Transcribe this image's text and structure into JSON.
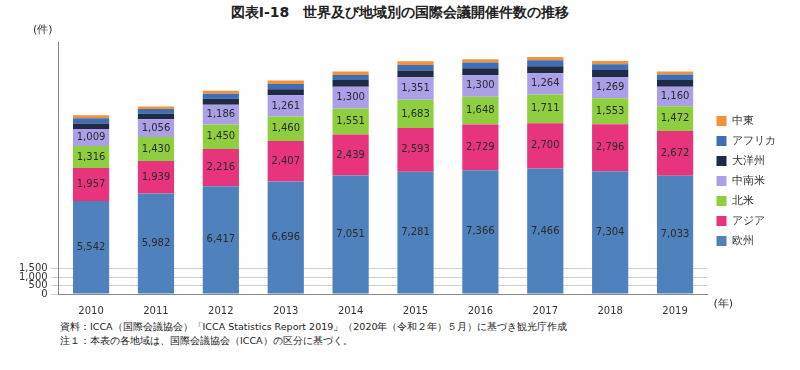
{
  "chart_data": {
    "type": "bar",
    "title": "図表Ⅰ-18　世界及び地域別の国際会議開催件数の推移",
    "ylabel": "(件)",
    "xlabel": "(年)",
    "notes": [
      "資料：ICCA（国際会議協会）「ICCA Statistics Report 2019」（2020年（令和２年）５月）に基づき観光庁作成",
      "注１：本表の各地域は、国際会議協会（ICCA）の区分に基づく。"
    ],
    "categories": [
      "2010",
      "2011",
      "2012",
      "2013",
      "2014",
      "2015",
      "2016",
      "2017",
      "2018",
      "2019"
    ],
    "stacked": true,
    "grid": true,
    "legend": "right",
    "ylim": [
      0,
      15000
    ],
    "yticks": [
      0,
      500,
      {
        "value": 1000,
        "label": "1,000"
      },
      {
        "value": 1500,
        "label": "1,500"
      }
    ],
    "series": [
      {
        "name": "欧州",
        "color": "#4f81bd",
        "data_labels": true,
        "values": [
          5542,
          5982,
          6417,
          6696,
          7051,
          7281,
          7366,
          7466,
          7304,
          7033
        ],
        "value_labels": [
          "5,542",
          "5,982",
          "6,417",
          "6,696",
          "7,051",
          "7,281",
          "7,366",
          "7,466",
          "7,304",
          "7,033"
        ]
      },
      {
        "name": "アジア",
        "color": "#e8347d",
        "data_labels": true,
        "values": [
          1957,
          1939,
          2216,
          2407,
          2439,
          2593,
          2729,
          2700,
          2796,
          2672
        ],
        "value_labels": [
          "1,957",
          "1,939",
          "2,216",
          "2,407",
          "2,439",
          "2,593",
          "2,729",
          "2,700",
          "2,796",
          "2,672"
        ]
      },
      {
        "name": "北米",
        "color": "#8fce3f",
        "data_labels": true,
        "values": [
          1316,
          1430,
          1450,
          1460,
          1551,
          1683,
          1648,
          1711,
          1553,
          1472
        ],
        "value_labels": [
          "1,316",
          "1,430",
          "1,450",
          "1,460",
          "1,551",
          "1,683",
          "1,648",
          "1,711",
          "1,553",
          "1,472"
        ]
      },
      {
        "name": "中南米",
        "color": "#ab9fe8",
        "data_labels": true,
        "values": [
          1009,
          1056,
          1186,
          1261,
          1300,
          1351,
          1300,
          1264,
          1269,
          1160
        ],
        "value_labels": [
          "1,009",
          "1,056",
          "1,186",
          "1,261",
          "1,300",
          "1,351",
          "1,300",
          "1,264",
          "1,269",
          "1,160"
        ]
      },
      {
        "name": "大洋州",
        "color": "#1f2b45",
        "data_labels": false,
        "values": [
          330,
          320,
          350,
          370,
          390,
          400,
          400,
          420,
          410,
          400
        ]
      },
      {
        "name": "アフリカ",
        "color": "#3e6fb6",
        "data_labels": false,
        "values": [
          310,
          280,
          300,
          310,
          310,
          330,
          340,
          350,
          340,
          330
        ]
      },
      {
        "name": "中東",
        "color": "#f2923a",
        "data_labels": false,
        "values": [
          170,
          160,
          180,
          200,
          200,
          210,
          190,
          190,
          190,
          180
        ]
      }
    ]
  }
}
